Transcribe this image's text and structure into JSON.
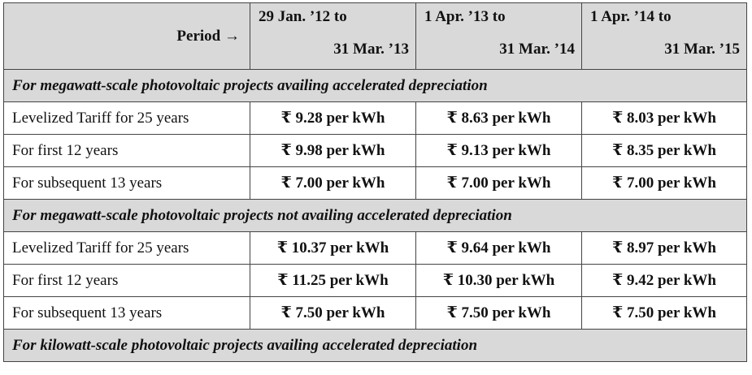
{
  "header": {
    "period_label": "Period →",
    "columns": [
      {
        "from": "29 Jan. ’12 to",
        "to": "31 Mar. ’13"
      },
      {
        "from": "1 Apr. ’13 to",
        "to": "31 Mar. ’14"
      },
      {
        "from": "1 Apr. ’14 to",
        "to": "31 Mar. ’15"
      }
    ]
  },
  "sections": [
    {
      "title": "For megawatt-scale photovoltaic projects availing accelerated depreciation",
      "rows": [
        {
          "label": "Levelized Tariff for 25 years",
          "values": [
            "₹ 9.28 per kWh",
            "₹ 8.63 per kWh",
            "₹ 8.03 per kWh"
          ]
        },
        {
          "label": "For first 12 years",
          "values": [
            "₹ 9.98 per kWh",
            "₹ 9.13 per kWh",
            "₹ 8.35 per kWh"
          ]
        },
        {
          "label": "For subsequent 13 years",
          "values": [
            "₹ 7.00 per kWh",
            "₹ 7.00 per kWh",
            "₹ 7.00 per kWh"
          ]
        }
      ]
    },
    {
      "title": "For megawatt-scale photovoltaic projects not availing accelerated depreciation",
      "rows": [
        {
          "label": "Levelized Tariff for 25 years",
          "values": [
            "₹ 10.37 per kWh",
            "₹ 9.64 per kWh",
            "₹ 8.97 per kWh"
          ]
        },
        {
          "label": "For first 12 years",
          "values": [
            "₹ 11.25 per kWh",
            "₹ 10.30 per kWh",
            "₹ 9.42 per kWh"
          ]
        },
        {
          "label": "For subsequent 13 years",
          "values": [
            "₹ 7.50 per kWh",
            "₹ 7.50 per kWh",
            "₹ 7.50 per kWh"
          ]
        }
      ]
    },
    {
      "title": "For kilowatt-scale photovoltaic projects availing accelerated depreciation",
      "rows": []
    }
  ]
}
